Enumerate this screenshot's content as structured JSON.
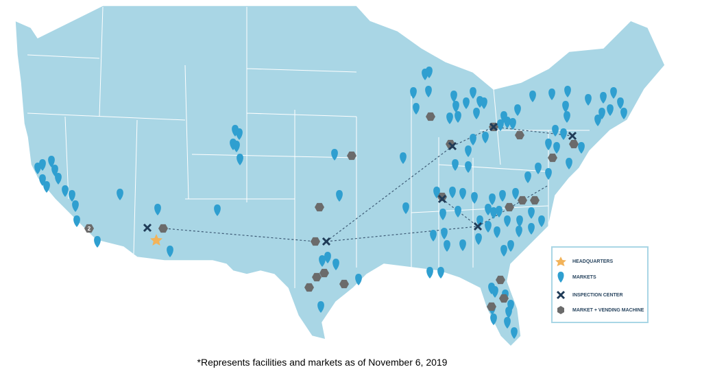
{
  "map": {
    "badge": "2"
  },
  "legend": {
    "items": [
      "HEADQUARTERS",
      "MARKETS",
      "INSPECTION CENTER",
      "MARKET + VENDING MACHINE"
    ]
  },
  "footnote": "*Represents facilities and markets as of November 6, 2019"
}
